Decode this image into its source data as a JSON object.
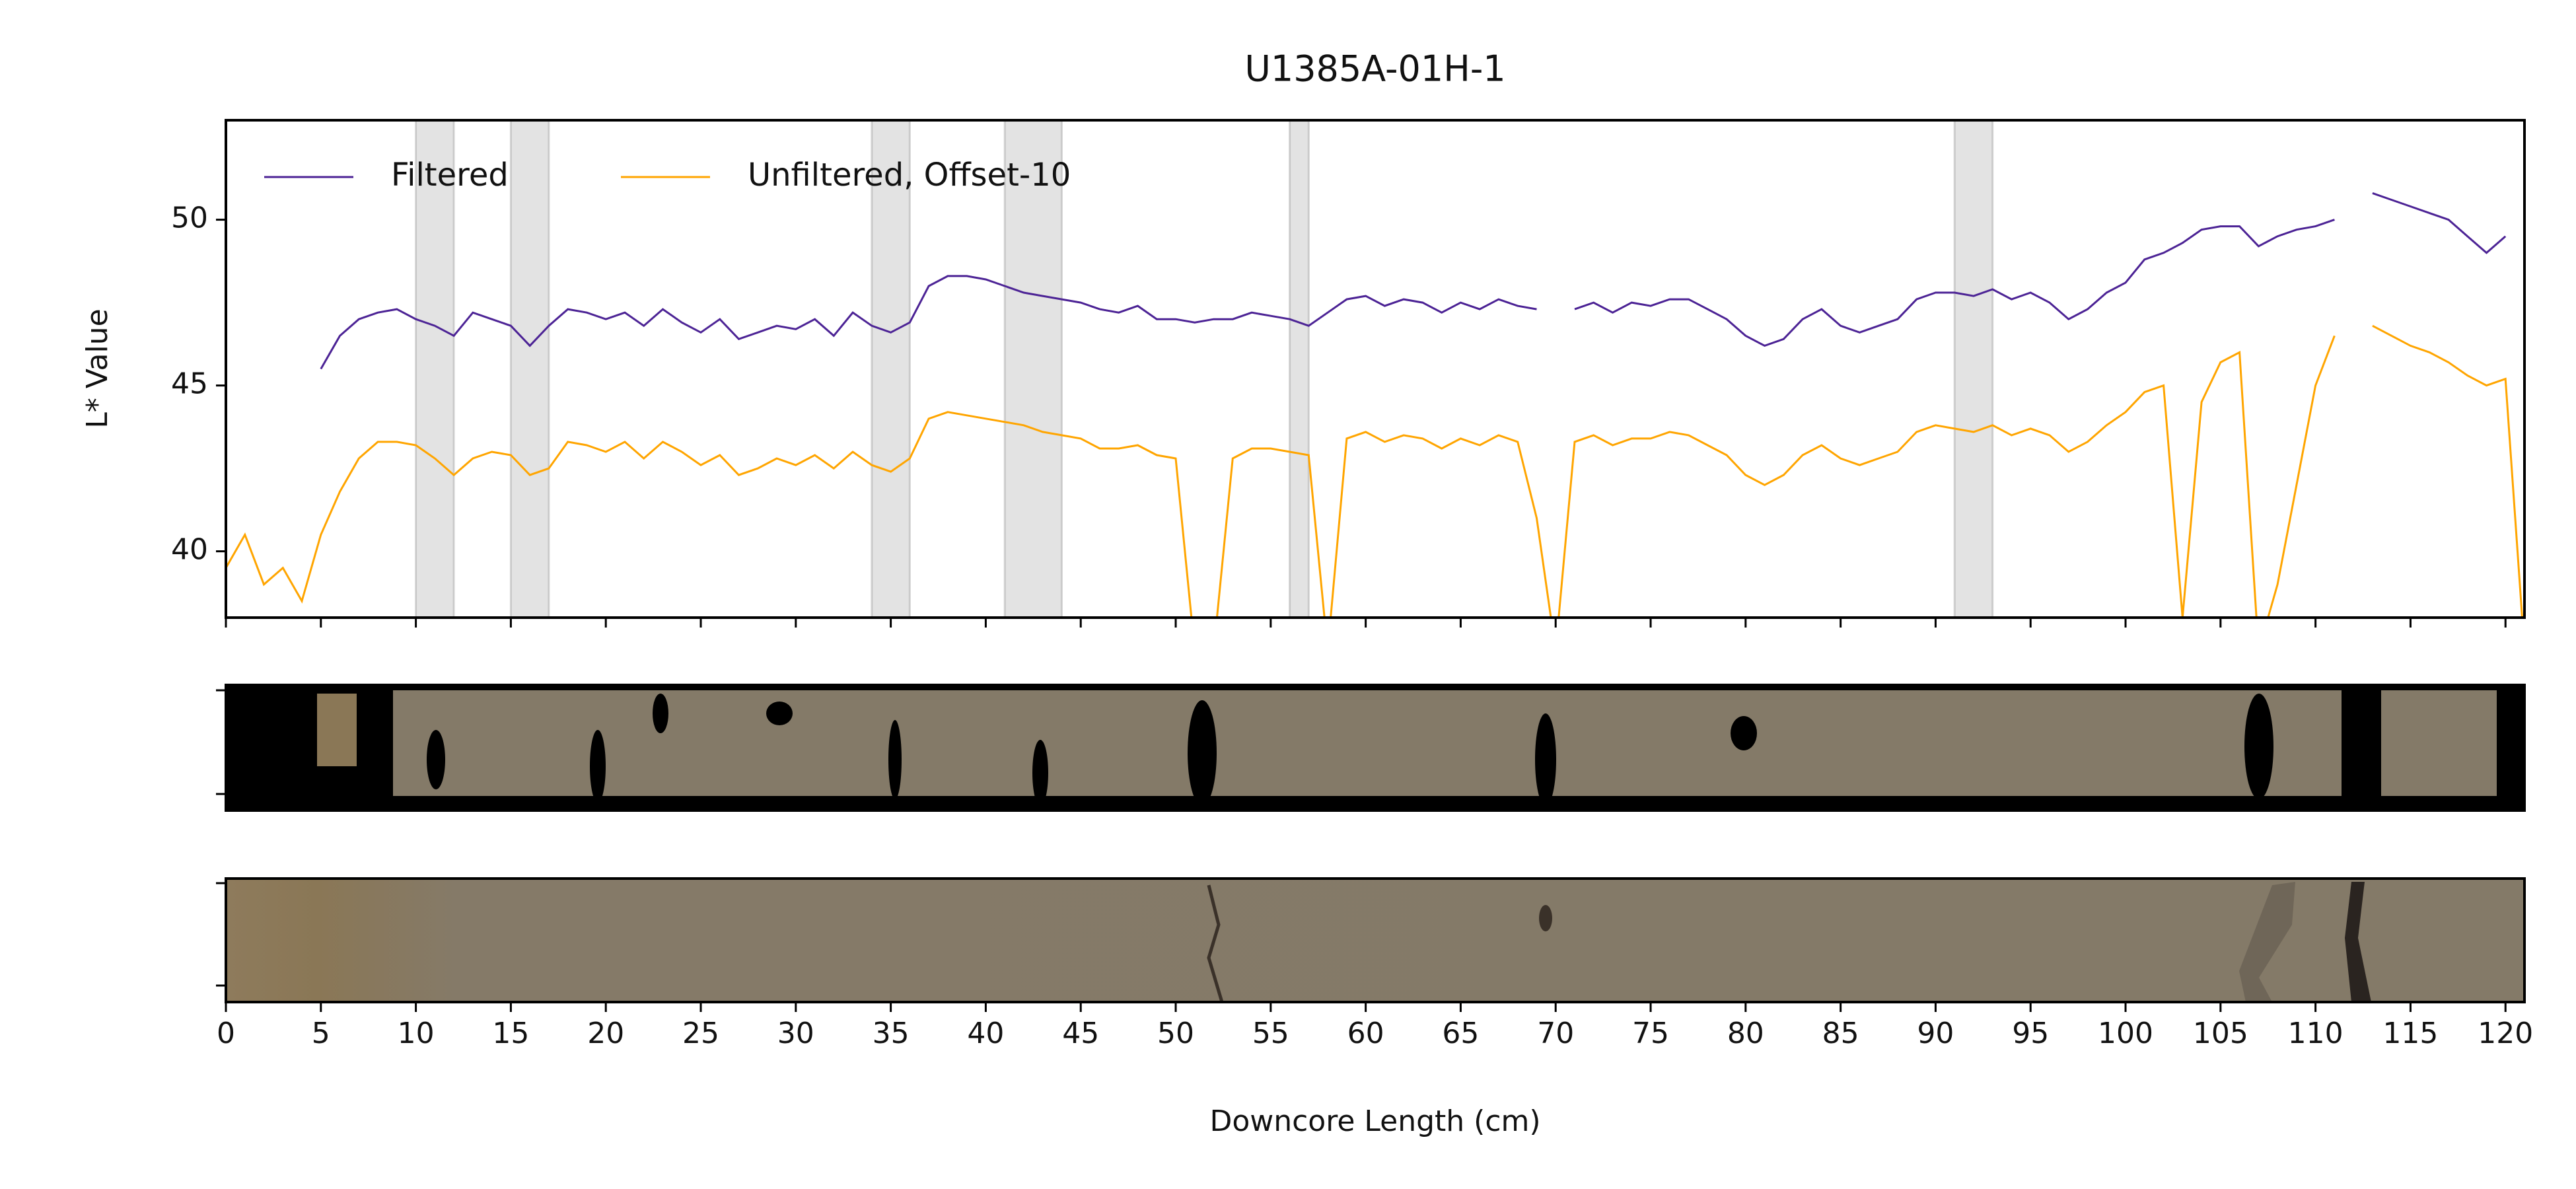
{
  "chart_data": {
    "type": "line",
    "title": "U1385A-01H-1",
    "x_label": "Downcore Length (cm)",
    "y_label": "L* Value",
    "x": [
      0,
      1,
      2,
      3,
      4,
      5,
      6,
      7,
      8,
      9,
      10,
      11,
      12,
      13,
      14,
      15,
      16,
      17,
      18,
      19,
      20,
      21,
      22,
      23,
      24,
      25,
      26,
      27,
      28,
      29,
      30,
      31,
      32,
      33,
      34,
      35,
      36,
      37,
      38,
      39,
      40,
      41,
      42,
      43,
      44,
      45,
      46,
      47,
      48,
      49,
      50,
      51,
      52,
      53,
      54,
      55,
      56,
      57,
      58,
      59,
      60,
      61,
      62,
      63,
      64,
      65,
      66,
      67,
      68,
      69,
      70,
      71,
      72,
      73,
      74,
      75,
      76,
      77,
      78,
      79,
      80,
      81,
      82,
      83,
      84,
      85,
      86,
      87,
      88,
      89,
      90,
      91,
      92,
      93,
      94,
      95,
      96,
      97,
      98,
      99,
      100,
      101,
      102,
      103,
      104,
      105,
      106,
      107,
      108,
      109,
      110,
      111,
      112,
      113,
      114,
      115,
      116,
      117,
      118,
      119,
      120,
      121
    ],
    "series": [
      {
        "name": "Filtered",
        "color": "#4c2395",
        "values": [
          null,
          null,
          null,
          null,
          null,
          45.5,
          46.5,
          47,
          47.2,
          47.3,
          47,
          46.8,
          46.5,
          47.2,
          47,
          46.8,
          46.2,
          46.8,
          47.3,
          47.2,
          47,
          47.2,
          46.8,
          47.3,
          46.9,
          46.6,
          47,
          46.4,
          46.6,
          46.8,
          46.7,
          47,
          46.5,
          47.2,
          46.8,
          46.6,
          46.9,
          48,
          48.3,
          48.3,
          48.2,
          48,
          47.8,
          47.7,
          47.6,
          47.5,
          47.3,
          47.2,
          47.4,
          47,
          47,
          46.9,
          47,
          47,
          47.2,
          47.1,
          47,
          46.8,
          47.2,
          47.6,
          47.7,
          47.4,
          47.6,
          47.5,
          47.2,
          47.5,
          47.3,
          47.6,
          47.4,
          47.3,
          null,
          47.3,
          47.5,
          47.2,
          47.5,
          47.4,
          47.6,
          47.6,
          47.3,
          47,
          46.5,
          46.2,
          46.4,
          47,
          47.3,
          46.8,
          46.6,
          46.8,
          47,
          47.6,
          47.8,
          47.8,
          47.7,
          47.9,
          47.6,
          47.8,
          47.5,
          47,
          47.3,
          47.8,
          48.1,
          48.8,
          49,
          49.3,
          49.7,
          49.8,
          49.8,
          49.2,
          49.5,
          49.7,
          49.8,
          50,
          null,
          50.8,
          50.6,
          50.4,
          50.2,
          50,
          49.5,
          49,
          49.5,
          null
        ]
      },
      {
        "name": "Unfiltered, Offset-10",
        "color": "#ffa500",
        "values": [
          39.5,
          40.5,
          39,
          39.5,
          38.5,
          40.5,
          41.8,
          42.8,
          43.3,
          43.3,
          43.2,
          42.8,
          42.3,
          42.8,
          43,
          42.9,
          42.3,
          42.5,
          43.3,
          43.2,
          43,
          43.3,
          42.8,
          43.3,
          43,
          42.6,
          42.9,
          42.3,
          42.5,
          42.8,
          42.6,
          42.9,
          42.5,
          43,
          42.6,
          42.4,
          42.8,
          44,
          44.2,
          44.1,
          44,
          43.9,
          43.8,
          43.6,
          43.5,
          43.4,
          43.1,
          43.1,
          43.2,
          42.9,
          42.8,
          37,
          37,
          42.8,
          43.1,
          43.1,
          43,
          42.9,
          37,
          43.4,
          43.6,
          43.3,
          43.5,
          43.4,
          43.1,
          43.4,
          43.2,
          43.5,
          43.3,
          41,
          37,
          43.3,
          43.5,
          43.2,
          43.4,
          43.4,
          43.6,
          43.5,
          43.2,
          42.9,
          42.3,
          42,
          42.3,
          42.9,
          43.2,
          42.8,
          42.6,
          42.8,
          43,
          43.6,
          43.8,
          43.7,
          43.6,
          43.8,
          43.5,
          43.7,
          43.5,
          43,
          43.3,
          43.8,
          44.2,
          44.8,
          45,
          38,
          44.5,
          45.7,
          46,
          37,
          39,
          42,
          45,
          46.5,
          null,
          46.8,
          46.5,
          46.2,
          46,
          45.7,
          45.3,
          45,
          45.2,
          37
        ]
      }
    ],
    "shaded_spans": [
      [
        10,
        12
      ],
      [
        15,
        17
      ],
      [
        34,
        36
      ],
      [
        41,
        44
      ],
      [
        56,
        57
      ],
      [
        91,
        93
      ]
    ],
    "xlim": [
      0,
      121
    ],
    "xticks": [
      0,
      5,
      10,
      15,
      20,
      25,
      30,
      35,
      40,
      45,
      50,
      55,
      60,
      65,
      70,
      75,
      80,
      85,
      90,
      95,
      100,
      105,
      110,
      115,
      120
    ],
    "ylim": [
      38,
      53
    ],
    "yticks": [
      40,
      45,
      50
    ],
    "legend": "upper left"
  }
}
